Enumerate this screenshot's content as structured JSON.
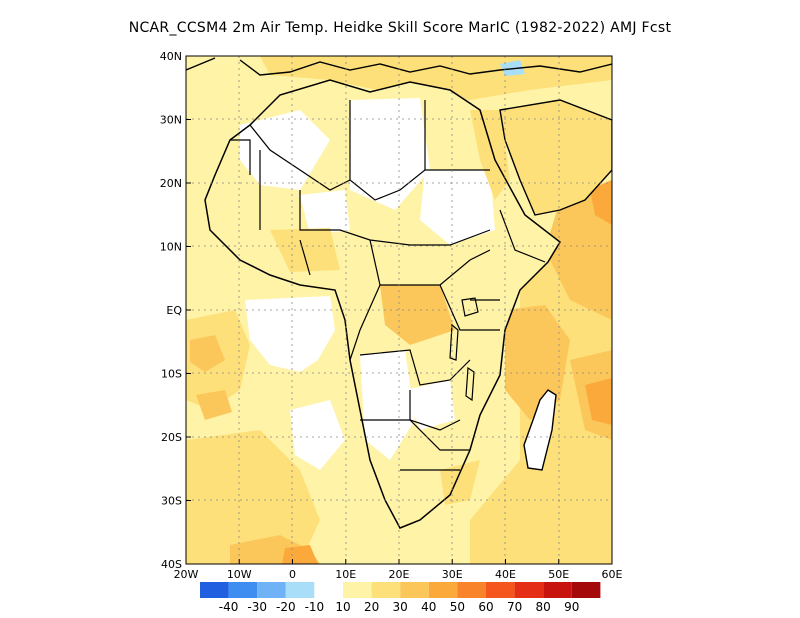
{
  "title": "NCAR_CCSM4  2m Air Temp. Heidke Skill Score MarIC (1982-2022) AMJ Fcst",
  "map": {
    "lon_range": [
      -20,
      60
    ],
    "lat_range": [
      -40,
      40
    ],
    "lon_ticks": [
      {
        "value": -20,
        "label": "20W"
      },
      {
        "value": -10,
        "label": "10W"
      },
      {
        "value": 0,
        "label": "0"
      },
      {
        "value": 10,
        "label": "10E"
      },
      {
        "value": 20,
        "label": "20E"
      },
      {
        "value": 30,
        "label": "30E"
      },
      {
        "value": 40,
        "label": "40E"
      },
      {
        "value": 50,
        "label": "50E"
      },
      {
        "value": 60,
        "label": "60E"
      }
    ],
    "lat_ticks": [
      {
        "value": 40,
        "label": "40N"
      },
      {
        "value": 30,
        "label": "30N"
      },
      {
        "value": 20,
        "label": "20N"
      },
      {
        "value": 10,
        "label": "10N"
      },
      {
        "value": 0,
        "label": "EQ"
      },
      {
        "value": -10,
        "label": "10S"
      },
      {
        "value": -20,
        "label": "20S"
      },
      {
        "value": -30,
        "label": "30S"
      },
      {
        "value": -40,
        "label": "40S"
      }
    ]
  },
  "colorbar": {
    "colors": [
      "#1f5fe0",
      "#3d8ef0",
      "#6fb2f5",
      "#a9def8",
      "#ffffff",
      "#fff3a8",
      "#fde07a",
      "#fcc75a",
      "#fca93c",
      "#f9832a",
      "#f4561d",
      "#e42e16",
      "#c8140f",
      "#a50a0a"
    ],
    "labels": [
      "-40",
      "-30",
      "-20",
      "-10",
      "10",
      "20",
      "30",
      "40",
      "50",
      "60",
      "70",
      "80",
      "90"
    ]
  },
  "skill_regions": [
    {
      "level": "20",
      "color": "#fde07a",
      "desc": "Atlantic west of Africa"
    },
    {
      "level": "20",
      "color": "#fde07a",
      "desc": "South Atlantic"
    },
    {
      "level": "40",
      "color": "#fca93c",
      "desc": "Red Sea and Arabian Sea"
    },
    {
      "level": "40",
      "color": "#fca93c",
      "desc": "Western Indian Ocean"
    },
    {
      "level": "10",
      "color": "#fff3a8",
      "desc": "Interior Africa"
    }
  ]
}
